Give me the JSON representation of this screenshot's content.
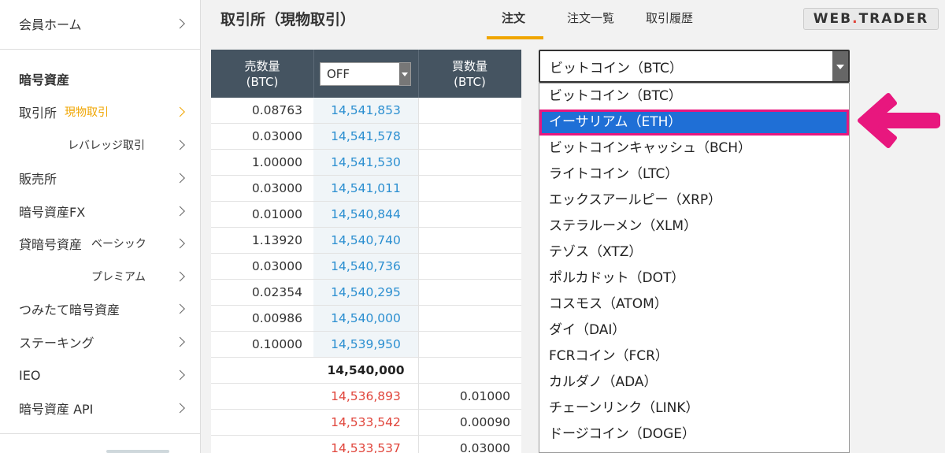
{
  "sidebar": {
    "member_home": "会員ホーム",
    "crypto_heading": "暗号資産",
    "exchange_label": "取引所",
    "exchange_spot": "現物取引",
    "leverage": "レバレッジ取引",
    "store": "販売所",
    "crypto_fx": "暗号資産FX",
    "lending_label": "貸暗号資産",
    "lending_basic": "ベーシック",
    "lending_premium": "プレミアム",
    "tsumitate": "つみたて暗号資産",
    "staking": "ステーキング",
    "ieo": "IEO",
    "api": "暗号資産 API"
  },
  "header": {
    "title": "取引所（現物取引）",
    "tabs": [
      "注文",
      "注文一覧",
      "取引履歴"
    ],
    "active_tab": "注文",
    "logo_left": "WEB",
    "logo_dot": ".",
    "logo_right": "TRADER"
  },
  "order_book": {
    "sell_qty_header": "売数量",
    "sell_unit": "(BTC)",
    "buy_qty_header": "買数量",
    "buy_unit": "(BTC)",
    "grouping_value": "OFF",
    "asks": [
      {
        "qty": "0.08763",
        "price": "14,541,853"
      },
      {
        "qty": "0.03000",
        "price": "14,541,578"
      },
      {
        "qty": "1.00000",
        "price": "14,541,530"
      },
      {
        "qty": "0.03000",
        "price": "14,541,011"
      },
      {
        "qty": "0.01000",
        "price": "14,540,844"
      },
      {
        "qty": "1.13920",
        "price": "14,540,740"
      },
      {
        "qty": "0.03000",
        "price": "14,540,736"
      },
      {
        "qty": "0.02354",
        "price": "14,540,295"
      },
      {
        "qty": "0.00986",
        "price": "14,540,000"
      },
      {
        "qty": "0.10000",
        "price": "14,539,950"
      }
    ],
    "mid_price": "14,540,000",
    "bids": [
      {
        "price": "14,536,893",
        "qty": "0.01000"
      },
      {
        "price": "14,533,542",
        "qty": "0.00090"
      },
      {
        "price": "14,533,537",
        "qty": "0.03000"
      }
    ]
  },
  "currency_select": {
    "current": "ビットコイン（BTC）",
    "options": [
      "ビットコイン（BTC）",
      "イーサリアム（ETH）",
      "ビットコインキャッシュ（BCH）",
      "ライトコイン（LTC）",
      "エックスアールピー（XRP）",
      "ステラルーメン（XLM）",
      "テゾス（XTZ）",
      "ポルカドット（DOT）",
      "コスモス（ATOM）",
      "ダイ（DAI）",
      "FCRコイン（FCR）",
      "カルダノ（ADA）",
      "チェーンリンク（LINK）",
      "ドージコイン（DOGE）"
    ],
    "highlighted": "イーサリアム（ETH）"
  },
  "colors": {
    "accent": "#f0a500",
    "ask_price": "#2a8ed0",
    "bid_price": "#e0443a",
    "highlight_bg": "#1f6fd6",
    "annotation_pink": "#e8177e"
  }
}
